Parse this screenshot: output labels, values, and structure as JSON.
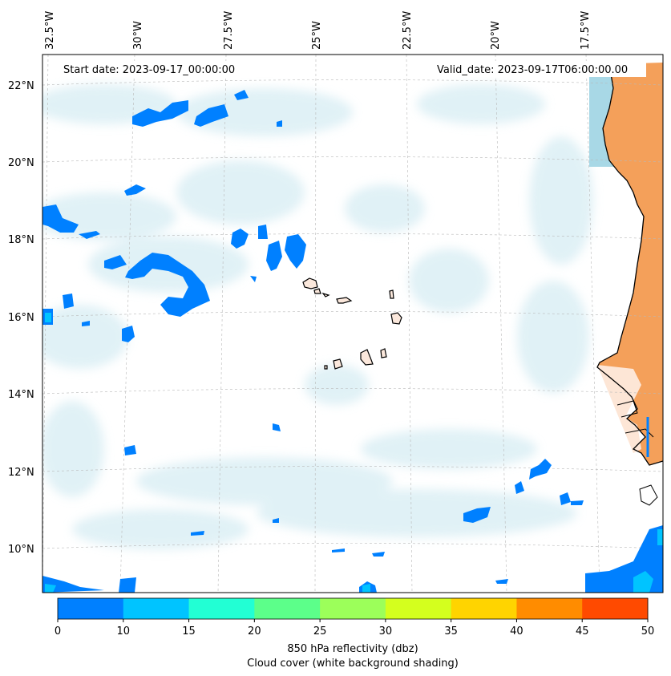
{
  "map": {
    "start_date_label": "Start date: 2023-09-17_00:00:00",
    "valid_date_label": "Valid_date: 2023-09-17T06:00:00.00",
    "lon_labels": [
      "32.5°W",
      "30°W",
      "27.5°W",
      "25°W",
      "22.5°W",
      "20°W",
      "17.5°W"
    ],
    "lat_labels": [
      "22°N",
      "20°N",
      "18°N",
      "16°N",
      "14°N",
      "12°N",
      "10°N"
    ],
    "land_color": "#f4a05a",
    "sea_cloud_color": "#a8d8e6",
    "reflectivity_low_color": "#0080ff"
  },
  "colorbar": {
    "ticks": [
      "0",
      "10",
      "15",
      "20",
      "25",
      "30",
      "35",
      "40",
      "45",
      "50"
    ],
    "colors": [
      "#0080ff",
      "#00c4ff",
      "#22ffd4",
      "#5cff8a",
      "#9cff5a",
      "#d4ff1e",
      "#ffd400",
      "#ff8c00",
      "#ff4a00"
    ],
    "label_line1": "850 hPa reflectivity (dbz)",
    "label_line2": "Cloud cover (white background shading)"
  }
}
